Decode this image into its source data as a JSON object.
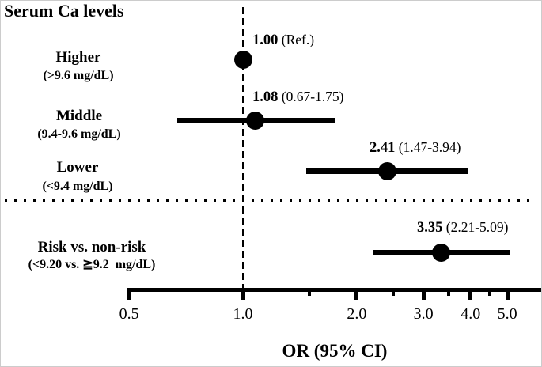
{
  "colors": {
    "ink": "#000000",
    "background": "#ffffff"
  },
  "chart_data": {
    "type": "scatter",
    "variant": "forest-plot",
    "title": "Serum Ca levels",
    "xlabel": "OR (95% CI)",
    "x_scale": "log",
    "xlim": [
      0.5,
      5.6
    ],
    "x_major_ticks": [
      0.5,
      1.0,
      2.0,
      3.0,
      4.0,
      5.0
    ],
    "x_major_tick_labels": [
      "0.5",
      "1.0",
      "2.0",
      "3.0",
      "4.0",
      "5.0"
    ],
    "x_minor_ticks": [
      1.5,
      2.5,
      3.5,
      4.5
    ],
    "reference_line": {
      "x": 1.0,
      "style": "dashed-vertical"
    },
    "separator": {
      "style": "dotted-horizontal",
      "between": [
        "Lower",
        "Risk vs. non-risk"
      ]
    },
    "rows": [
      {
        "label": "Higher",
        "sublabel": "(>9.6 mg/dL)",
        "or": 1.0,
        "ci_low": null,
        "ci_high": null,
        "or_text": "1.00",
        "ci_text": "(Ref.)"
      },
      {
        "label": "Middle",
        "sublabel": "(9.4-9.6 mg/dL)",
        "or": 1.08,
        "ci_low": 0.67,
        "ci_high": 1.75,
        "or_text": "1.08",
        "ci_text": "(0.67-1.75)"
      },
      {
        "label": "Lower",
        "sublabel": "(<9.4 mg/dL)",
        "or": 2.41,
        "ci_low": 1.47,
        "ci_high": 3.94,
        "or_text": "2.41",
        "ci_text": "(1.47-3.94)"
      },
      {
        "label": "Risk vs. non-risk",
        "sublabel": "(<9.20 vs. ≧9.2  mg/dL)",
        "or": 3.35,
        "ci_low": 2.21,
        "ci_high": 5.09,
        "or_text": "3.35",
        "ci_text": "(2.21-5.09)"
      }
    ]
  }
}
